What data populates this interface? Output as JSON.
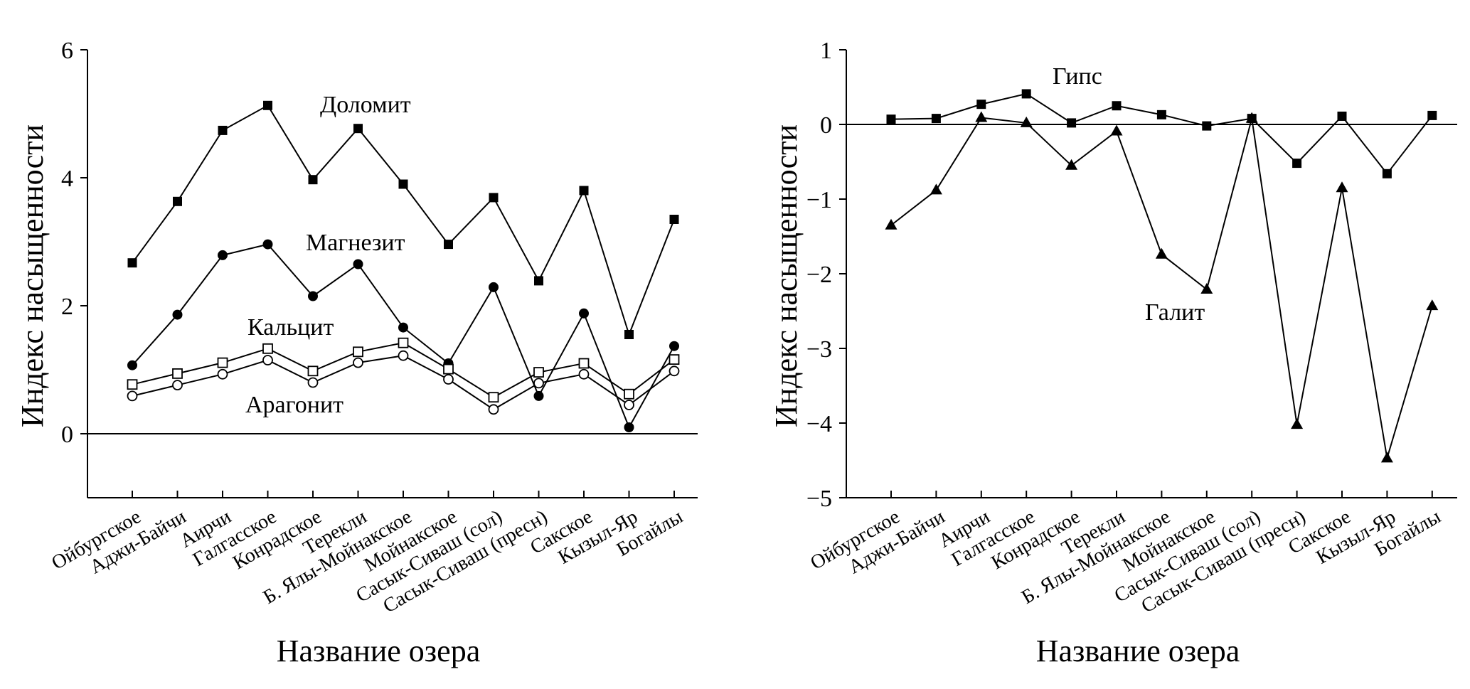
{
  "chart_data": [
    {
      "type": "line",
      "xlabel": "Название озера",
      "ylabel": "Индекс насыщенности",
      "ylim": [
        -1,
        6
      ],
      "yticks": [
        0,
        2,
        4,
        6
      ],
      "zero_line": true,
      "grid": false,
      "categories": [
        "Ойбургское",
        "Аджи-Байчи",
        "Аирчи",
        "Галгасское",
        "Конрадское",
        "Терекли",
        "Б. Ялы-Мойнакское",
        "Мойнакское",
        "Сасык-Сиваш (сол)",
        "Сасык-Сиваш (пресн)",
        "Сакское",
        "Кызыл-Яр",
        "Богайлы"
      ],
      "series": [
        {
          "name": "Доломит",
          "marker": "square-filled",
          "values": [
            2.67,
            3.63,
            4.74,
            5.13,
            3.97,
            4.77,
            3.9,
            2.96,
            3.69,
            2.39,
            3.8,
            1.55,
            3.35
          ]
        },
        {
          "name": "Магнезит",
          "marker": "circle-filled",
          "values": [
            1.07,
            1.86,
            2.79,
            2.96,
            2.15,
            2.65,
            1.66,
            1.1,
            2.29,
            0.59,
            1.88,
            0.1,
            1.37
          ]
        },
        {
          "name": "Кальцит",
          "marker": "square-open",
          "values": [
            0.77,
            0.94,
            1.11,
            1.33,
            0.98,
            1.28,
            1.42,
            1.01,
            0.57,
            0.96,
            1.1,
            0.62,
            1.16
          ]
        },
        {
          "name": "Арагонит",
          "marker": "circle-open",
          "values": [
            0.59,
            0.76,
            0.93,
            1.15,
            0.8,
            1.11,
            1.22,
            0.85,
            0.38,
            0.79,
            0.93,
            0.45,
            0.98
          ]
        }
      ]
    },
    {
      "type": "line",
      "xlabel": "Название озера",
      "ylabel": "Индекс насыщенности",
      "ylim": [
        -5,
        1
      ],
      "yticks": [
        -5,
        -4,
        -3,
        -2,
        -1,
        0,
        1
      ],
      "zero_line": true,
      "grid": false,
      "categories": [
        "Ойбургское",
        "Аджи-Байчи",
        "Аирчи",
        "Галгасское",
        "Конрадское",
        "Терекли",
        "Б. Ялы-Мойнакское",
        "Мойнакское",
        "Сасык-Сиваш (сол)",
        "Сасык-Сиваш (пресн)",
        "Сакское",
        "Кызыл-Яр",
        "Богайлы"
      ],
      "series": [
        {
          "name": "Гипс",
          "marker": "square-filled",
          "values": [
            0.07,
            0.08,
            0.27,
            0.41,
            0.02,
            0.25,
            0.13,
            -0.02,
            0.08,
            -0.52,
            0.11,
            -0.66,
            0.12
          ]
        },
        {
          "name": "Галит",
          "marker": "triangle-filled",
          "values": [
            -1.35,
            -0.88,
            0.09,
            0.02,
            -0.55,
            -0.09,
            -1.74,
            -2.21,
            0.08,
            -4.02,
            -0.85,
            -4.47,
            -2.43
          ]
        }
      ]
    }
  ]
}
